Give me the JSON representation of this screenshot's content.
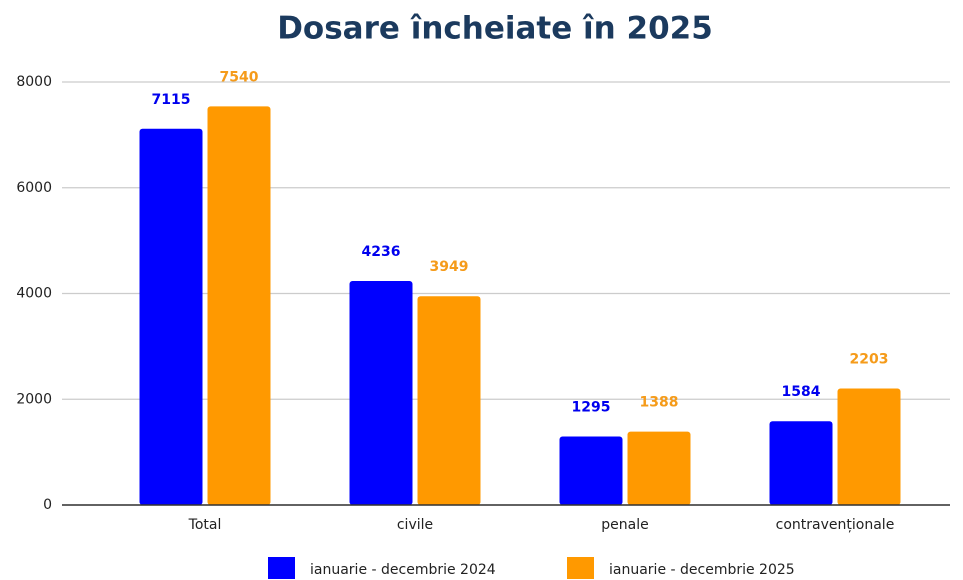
{
  "chart_data": {
    "type": "bar",
    "title": "Dosare încheiate în 2025",
    "categories": [
      "Total",
      "civile",
      "penale",
      "contravenționale"
    ],
    "series": [
      {
        "name": "ianuarie - decembrie 2024",
        "color": "#0000ff",
        "label_color": "#0000ee",
        "values": [
          7115,
          4236,
          1295,
          1584
        ]
      },
      {
        "name": "ianuarie - decembrie 2025",
        "color": "#ff9900",
        "label_color": "#f59b1a",
        "values": [
          7540,
          3949,
          1388,
          2203
        ]
      }
    ],
    "ylim": [
      0,
      8000
    ],
    "yticks": [
      0,
      2000,
      4000,
      6000,
      8000
    ],
    "grid": true,
    "legend": "bottom"
  }
}
